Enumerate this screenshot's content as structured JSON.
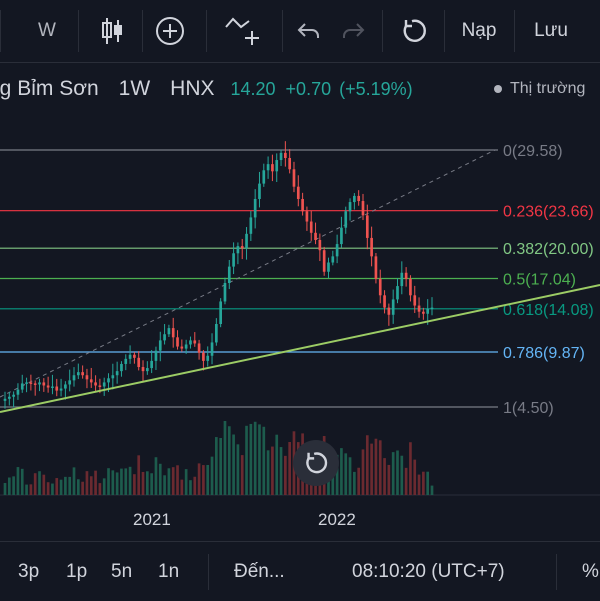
{
  "toolbar": {
    "interval_short": "W",
    "undo_icon": "undo-icon",
    "redo_icon": "redo-icon",
    "reload_icon": "reload-icon",
    "load_label": "Nạp",
    "save_label": "Lưu"
  },
  "legend": {
    "name": "ng Bỉm Sơn",
    "interval": "1W",
    "exchange": "HNX",
    "last": "14.20",
    "change": "+0.70",
    "change_pct": "(+5.19%)",
    "market_status": "Thị trường"
  },
  "colors": {
    "up": "#26a69a",
    "down": "#ef5350",
    "trendline": "#9ccc65",
    "volume_up": "#1d5c4d",
    "volume_down": "#6b2a30"
  },
  "chart_data": {
    "type": "candlestick",
    "x_ticks": [
      "2021",
      "2022"
    ],
    "fib_levels": [
      {
        "label": "0(29.58)",
        "price": 29.58,
        "color": "#787b86"
      },
      {
        "label": "0.236(23.66)",
        "price": 23.66,
        "color": "#f23645"
      },
      {
        "label": "0.382(20.00)",
        "price": 20.0,
        "color": "#81c784"
      },
      {
        "label": "0.5(17.04)",
        "price": 17.04,
        "color": "#4caf50"
      },
      {
        "label": "0.618(14.08)",
        "price": 14.08,
        "color": "#089981"
      },
      {
        "label": "0.786(9.87)",
        "price": 9.87,
        "color": "#64b5f6"
      },
      {
        "label": "1(4.50)",
        "price": 4.5,
        "color": "#787b86"
      }
    ],
    "price_path": [
      5.3,
      5.5,
      5.7,
      6.2,
      6.8,
      6.9,
      6.8,
      6.7,
      6.9,
      6.6,
      6.4,
      6.5,
      6.1,
      6.3,
      6.7,
      7.1,
      7.6,
      7.9,
      7.6,
      7.2,
      6.9,
      6.6,
      6.5,
      6.9,
      7.3,
      7.6,
      8.0,
      8.7,
      9.2,
      9.6,
      9.3,
      8.4,
      8.0,
      8.3,
      9.0,
      10.0,
      11.0,
      11.6,
      12.2,
      11.3,
      10.4,
      10.2,
      10.6,
      11.0,
      10.7,
      9.8,
      9.0,
      9.5,
      10.8,
      12.6,
      14.8,
      16.6,
      18.2,
      19.5,
      20.2,
      20.0,
      21.4,
      23.0,
      24.8,
      26.3,
      27.6,
      28.2,
      27.5,
      28.6,
      29.3,
      28.8,
      27.7,
      26.0,
      24.8,
      23.6,
      22.6,
      21.5,
      20.8,
      19.8,
      17.7,
      18.6,
      19.2,
      20.4,
      22.0,
      23.6,
      24.5,
      25.1,
      24.6,
      23.2,
      21.0,
      19.2,
      17.0,
      15.4,
      14.2,
      13.5,
      15.0,
      16.3,
      17.6,
      17.0,
      15.4,
      14.4,
      13.8,
      13.6,
      14.1,
      14.2
    ]
  },
  "bottombar": {
    "range_3p": "3p",
    "range_1p": "1p",
    "range_5n": "5n",
    "range_1n": "1n",
    "goto": "Đến...",
    "clock": "08:10:20 (UTC+7)",
    "percent": "%"
  }
}
